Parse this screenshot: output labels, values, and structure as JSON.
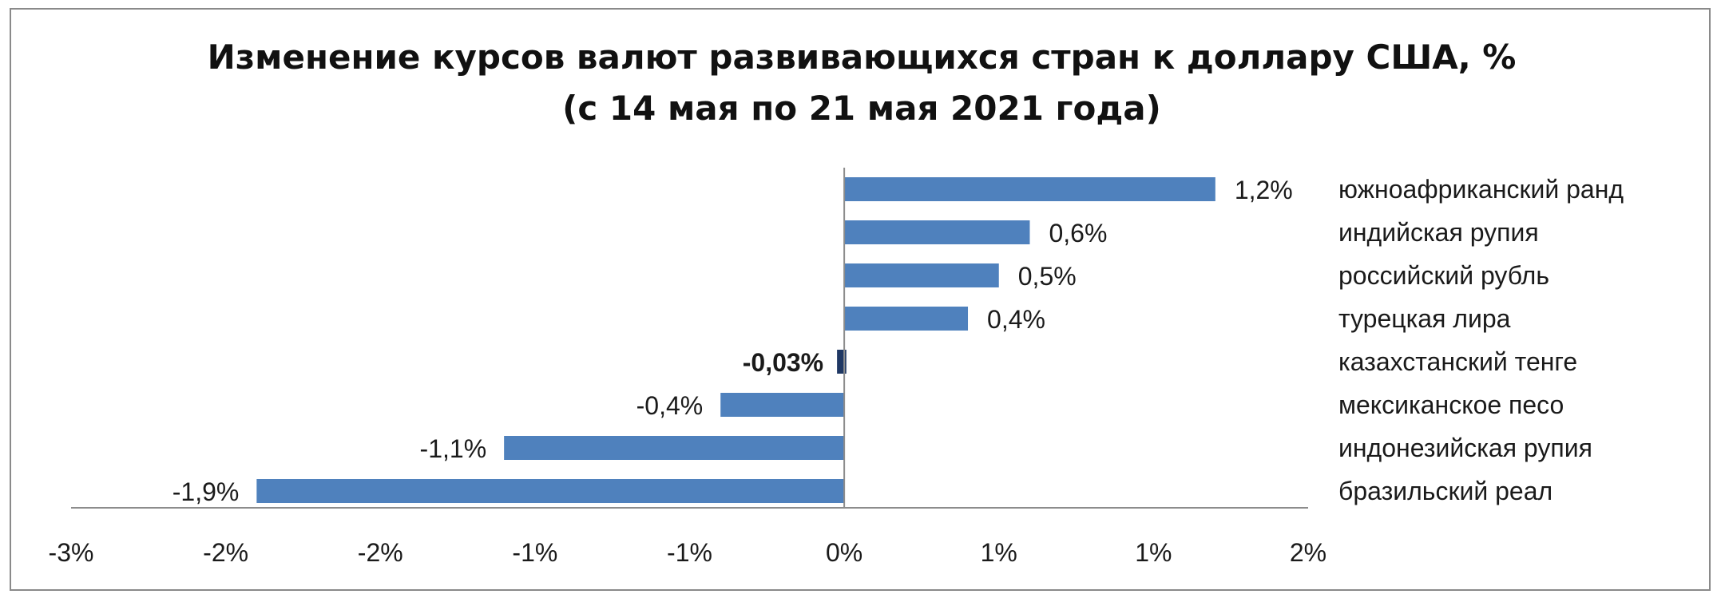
{
  "chart_data": {
    "type": "bar",
    "orientation": "horizontal",
    "title": "Изменение курсов валют развивающихся стран к доллару США, %",
    "subtitle": "(с 14 мая по 21 мая 2021 года)",
    "categories": [
      "южноафриканский ранд",
      "индийская рупия",
      "российский рубль",
      "турецкая лира",
      "казахстанский тенге",
      "мексиканское песо",
      "индонезийская рупия",
      "бразильский реал"
    ],
    "values": [
      1.2,
      0.6,
      0.5,
      0.4,
      -0.03,
      -0.4,
      -1.1,
      -1.9
    ],
    "value_labels": [
      "1,2%",
      "0,6%",
      "0,5%",
      "0,4%",
      "-0,03%",
      "-0,4%",
      "-1,1%",
      "-1,9%"
    ],
    "highlighted_index": 4,
    "xlim": [
      -2.5,
      1.5
    ],
    "x_ticks": [
      -2.5,
      -2.0,
      -1.5,
      -1.0,
      -0.5,
      0.0,
      0.5,
      1.0,
      1.5
    ],
    "x_tick_labels": [
      "-3%",
      "-2%",
      "-2%",
      "-1%",
      "-1%",
      "0%",
      "1%",
      "1%",
      "2%"
    ],
    "grid": false,
    "legend": "none",
    "colors": {
      "bar": "#4f81bd",
      "highlight_bar": "#1f3864",
      "axis": "#8c8c8c",
      "text": "#1a1a1a"
    }
  }
}
